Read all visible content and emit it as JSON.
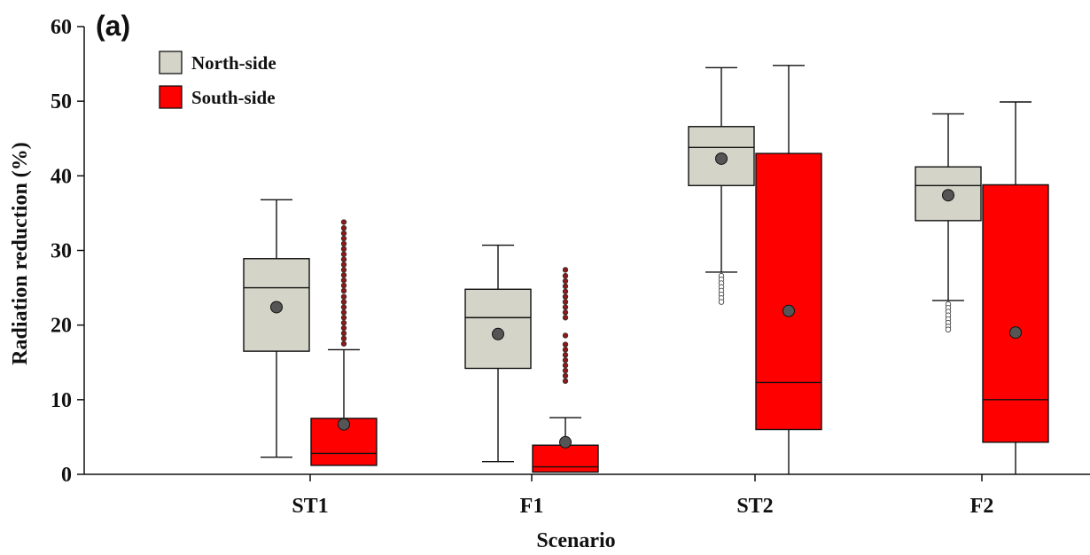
{
  "chart_data": {
    "type": "box",
    "panel_label": "(a)",
    "xlabel": "Scenario",
    "ylabel": "Radiation reduction (%)",
    "ylim": [
      0,
      60
    ],
    "yticks": [
      "0",
      "10",
      "20",
      "30",
      "40",
      "50",
      "60"
    ],
    "categories": [
      "ST1",
      "F1",
      "ST2",
      "F2"
    ],
    "grid": false,
    "legend_position": "top-left",
    "series": [
      {
        "name": "North-side",
        "color": "#d4d4c8",
        "boxes": [
          {
            "whisker_low": 2.3,
            "q1": 16.5,
            "median": 25.0,
            "q3": 28.9,
            "whisker_high": 36.8,
            "mean": 22.4,
            "outliers": []
          },
          {
            "whisker_low": 1.7,
            "q1": 14.2,
            "median": 21.0,
            "q3": 24.8,
            "whisker_high": 30.7,
            "mean": 18.8,
            "outliers": []
          },
          {
            "whisker_low": 27.1,
            "q1": 38.7,
            "median": 43.8,
            "q3": 46.6,
            "whisker_high": 54.5,
            "mean": 42.3,
            "outliers": [
              26.6,
              26.1,
              25.6,
              25.1,
              24.6,
              24.1,
              23.6,
              23.1
            ]
          },
          {
            "whisker_low": 23.3,
            "q1": 34.0,
            "median": 38.7,
            "q3": 41.2,
            "whisker_high": 48.3,
            "mean": 37.4,
            "outliers": [
              22.8,
              22.3,
              21.8,
              21.3,
              20.8,
              20.3,
              19.8,
              19.4
            ]
          }
        ]
      },
      {
        "name": "South-side",
        "color": "#ff0000",
        "boxes": [
          {
            "whisker_low": 1.2,
            "q1": 1.2,
            "median": 2.8,
            "q3": 7.5,
            "whisker_high": 16.7,
            "mean": 6.7,
            "outliers": [
              17.5,
              18.2,
              18.9,
              19.6,
              20.3,
              21.0,
              21.7,
              22.4,
              23.1,
              23.8,
              24.6,
              25.3,
              26.0,
              26.7,
              27.4,
              28.1,
              28.8,
              29.5,
              30.2,
              30.9,
              31.6,
              32.3,
              33.0,
              33.8
            ]
          },
          {
            "whisker_low": 0.3,
            "q1": 0.3,
            "median": 1.0,
            "q3": 3.9,
            "whisker_high": 7.6,
            "mean": 4.3,
            "outliers": [
              12.5,
              13.2,
              13.9,
              14.6,
              15.3,
              16.0,
              16.7,
              17.4,
              18.6,
              21.0,
              21.7,
              22.4,
              23.1,
              23.8,
              24.5,
              25.2,
              25.9,
              26.6,
              27.4
            ]
          },
          {
            "whisker_low": 0.0,
            "q1": 6.0,
            "median": 12.3,
            "q3": 43.0,
            "whisker_high": 54.8,
            "mean": 21.9,
            "outliers": []
          },
          {
            "whisker_low": 0.0,
            "q1": 4.3,
            "median": 10.0,
            "q3": 38.8,
            "whisker_high": 49.9,
            "mean": 19.0,
            "outliers": []
          }
        ]
      }
    ]
  }
}
